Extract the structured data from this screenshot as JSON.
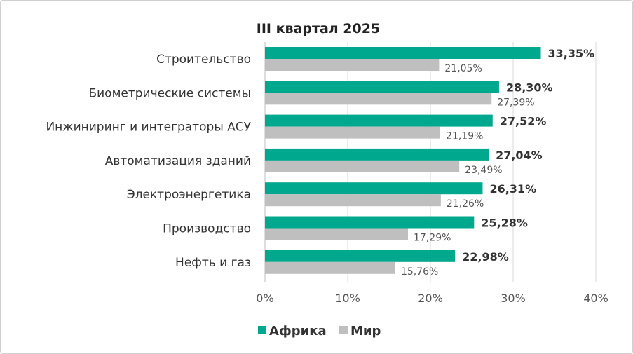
{
  "chart_data": {
    "type": "bar",
    "orientation": "horizontal",
    "title": "III квартал 2025",
    "categories": [
      "Строительство",
      "Биометрические системы",
      "Инжиниринг и интеграторы АСУ",
      "Автоматизация зданий",
      "Электроэнергетика",
      "Производство",
      "Нефть и газ"
    ],
    "series": [
      {
        "name": "Африка",
        "color": "#00a88e",
        "values": [
          33.35,
          28.3,
          27.52,
          27.04,
          26.31,
          25.28,
          22.98
        ],
        "labels": [
          "33,35%",
          "28,30%",
          "27,52%",
          "27,04%",
          "26,31%",
          "25,28%",
          "22,98%"
        ]
      },
      {
        "name": "Мир",
        "color": "#bfbfbf",
        "values": [
          21.05,
          27.39,
          21.19,
          23.49,
          21.26,
          17.29,
          15.76
        ],
        "labels": [
          "21,05%",
          "27,39%",
          "21,19%",
          "23,49%",
          "21,26%",
          "17,29%",
          "15,76%"
        ]
      }
    ],
    "xlim": [
      0,
      40
    ],
    "x_ticks": [
      0,
      10,
      20,
      30,
      40
    ],
    "x_tick_labels": [
      "0%",
      "10%",
      "20%",
      "30%",
      "40%"
    ],
    "grid": true,
    "legend_position": "bottom"
  }
}
